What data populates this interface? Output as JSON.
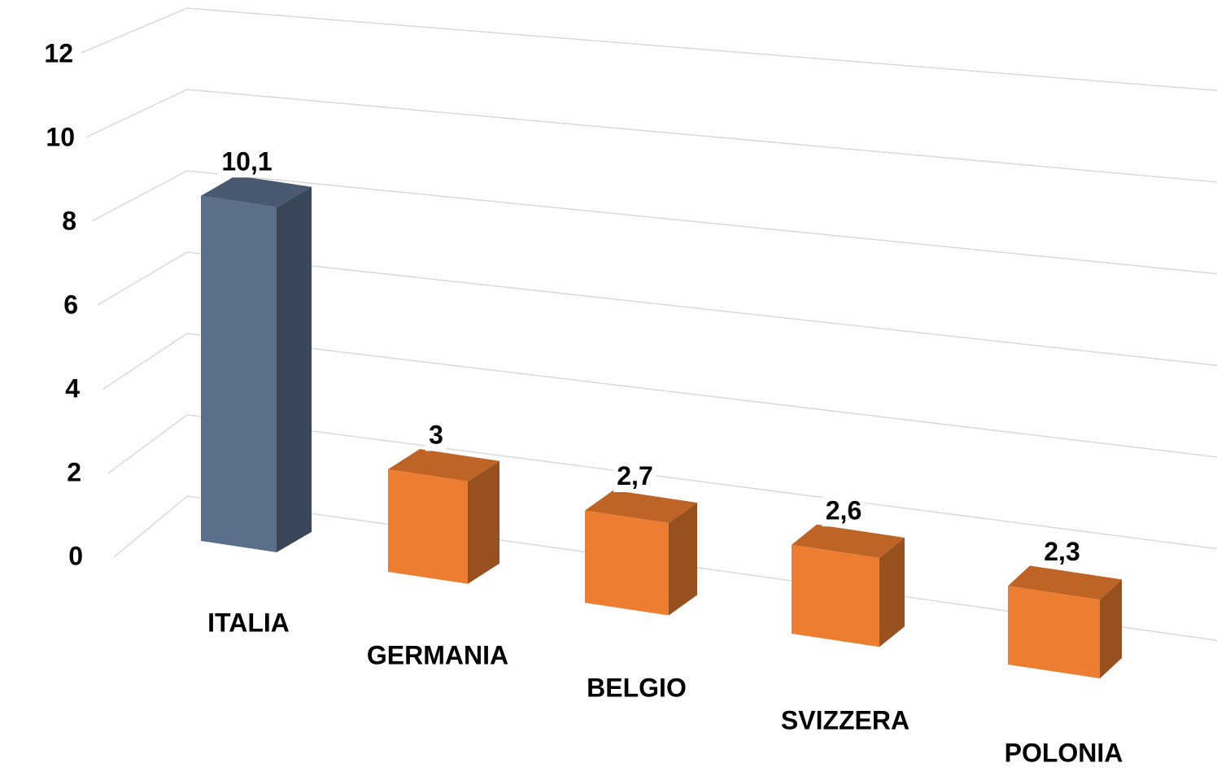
{
  "chart_data": {
    "type": "bar3d",
    "categories": [
      "ITALIA",
      "GERMANIA",
      "BELGIO",
      "SVIZZERA",
      "POLONIA"
    ],
    "values": [
      10.1,
      3,
      2.7,
      2.6,
      2.3
    ],
    "value_labels": [
      "10,1",
      "3",
      "2,7",
      "2,6",
      "2,3"
    ],
    "colors": [
      "#5b6f8c",
      "#ed7d31",
      "#ed7d31",
      "#ed7d31",
      "#ed7d31"
    ],
    "ylim": [
      0,
      12
    ],
    "yticks": [
      0,
      2,
      4,
      6,
      8,
      10,
      12
    ],
    "grid": true
  }
}
